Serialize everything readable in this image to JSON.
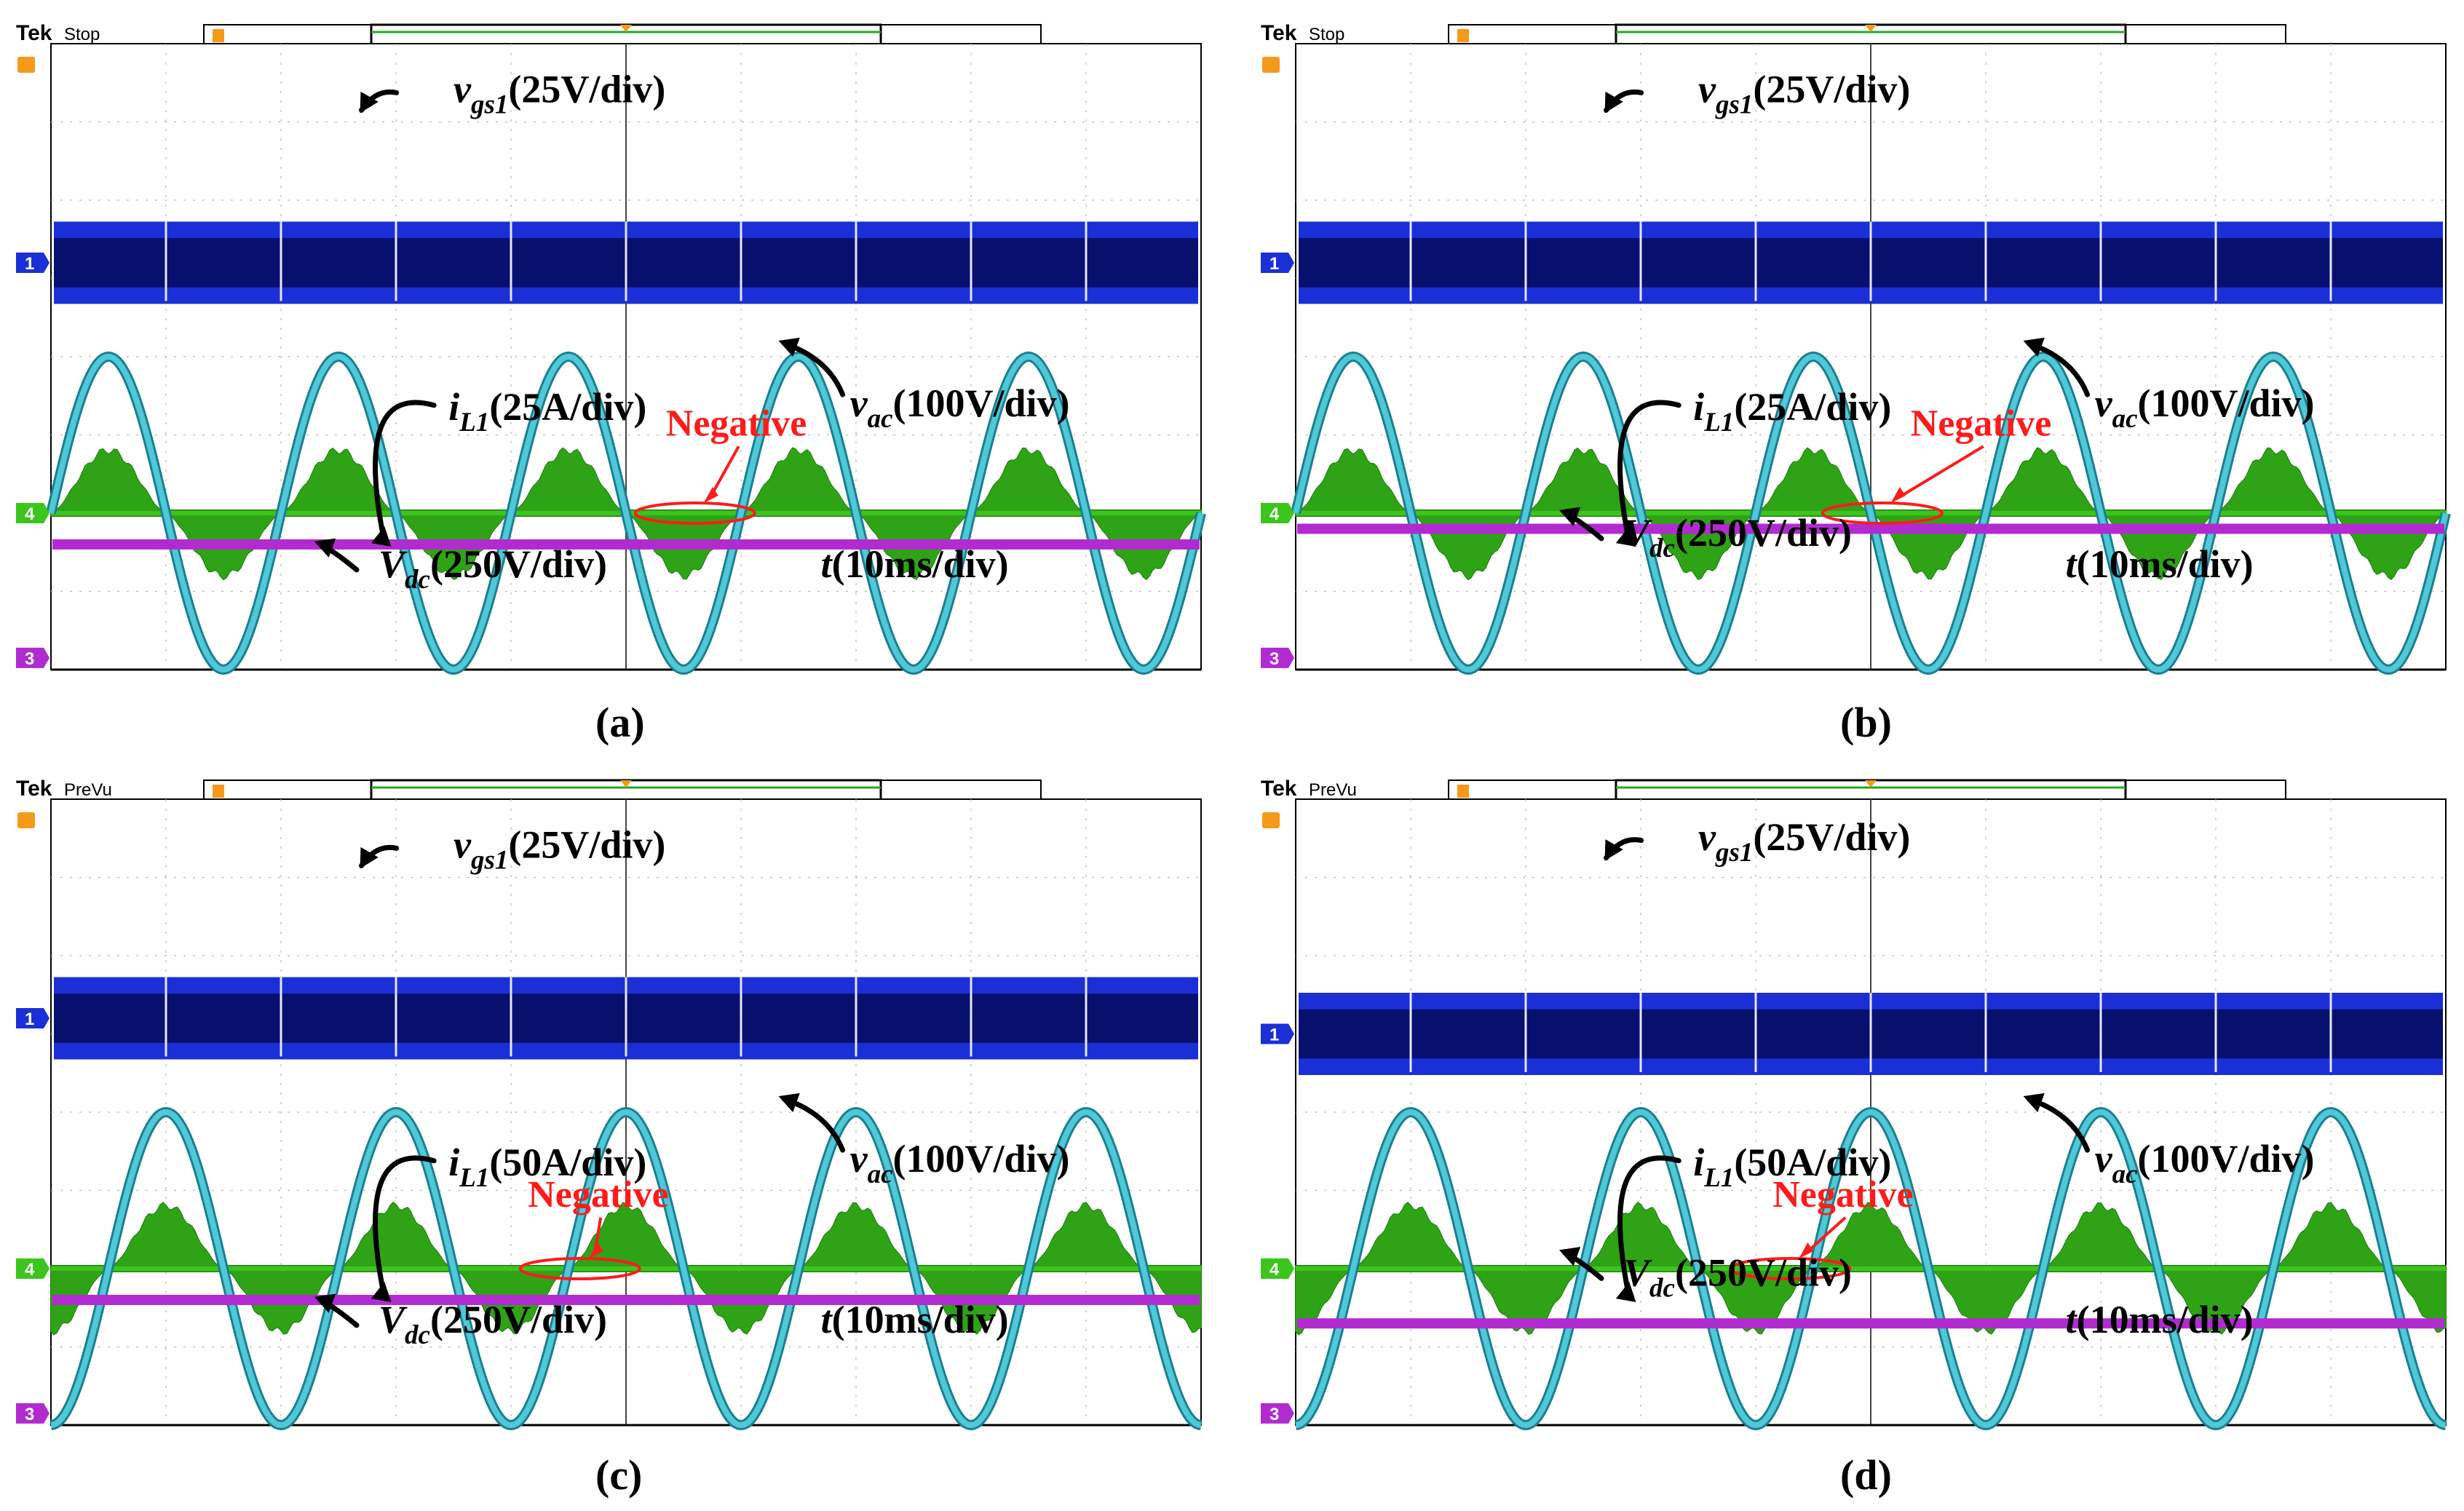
{
  "figure": {
    "panel_count": 4
  },
  "colors": {
    "ch1": "#1b2fd6",
    "ch1_dark": "#08106e",
    "ch2": "#4fc8d8",
    "ch3": "#b12bd0",
    "ch4": "#3cc51d",
    "ch4_dark": "#1f7a0e",
    "trigger": "#f39a1a",
    "annotation": "#ff1b1b",
    "grid": "#b8b8b8"
  },
  "chart_data": [
    {
      "type": "line",
      "panel_id": "(a)",
      "status": "Stop",
      "brand": "Tek",
      "grid": {
        "x_divisions": 10,
        "y_divisions": 8
      },
      "time_label": {
        "var": "t",
        "unit": "(10ms/div)"
      },
      "series": [
        {
          "name": "vgs1",
          "var": "v",
          "sub": "gs1",
          "scale": "(25V/div)",
          "channel": "1",
          "kind": "gate_pulses",
          "center_div": 5.2,
          "pulse_groups": 10
        },
        {
          "name": "vac",
          "var": "v",
          "sub": "ac",
          "scale": "(100V/div)",
          "channel": "2",
          "kind": "sine",
          "amplitude_div": 2.0,
          "period_div": 2.0,
          "phase_div": 0.0
        },
        {
          "name": "iL1",
          "var": "i",
          "sub": "L1",
          "scale": "(25A/div)",
          "channel": "4",
          "kind": "current",
          "amplitude_div": 0.8,
          "period_div": 2.0,
          "phase_div": 0.0,
          "zero_div": 2.0
        },
        {
          "name": "Vdc",
          "var": "V",
          "sub": "dc",
          "scale": "(250V/div)",
          "channel": "3",
          "kind": "dc",
          "level_div": 1.6
        }
      ],
      "annotation": {
        "text": "Negative",
        "ellipse_div": [
          5.6,
          0.0
        ]
      }
    },
    {
      "type": "line",
      "panel_id": "(b)",
      "status": "Stop",
      "brand": "Tek",
      "grid": {
        "x_divisions": 10,
        "y_divisions": 8
      },
      "time_label": {
        "var": "t",
        "unit": "(10ms/div)"
      },
      "series": [
        {
          "name": "vgs1",
          "var": "v",
          "sub": "gs1",
          "scale": "(25V/div)",
          "channel": "1",
          "kind": "gate_pulses",
          "center_div": 5.2,
          "pulse_groups": 10
        },
        {
          "name": "vac",
          "var": "v",
          "sub": "ac",
          "scale": "(100V/div)",
          "channel": "2",
          "kind": "sine",
          "amplitude_div": 2.0,
          "period_div": 2.0,
          "phase_div": 0.0
        },
        {
          "name": "iL1",
          "var": "i",
          "sub": "L1",
          "scale": "(25A/div)",
          "channel": "4",
          "kind": "current",
          "amplitude_div": 0.8,
          "period_div": 2.0,
          "phase_div": 0.0,
          "zero_div": 2.0
        },
        {
          "name": "Vdc",
          "var": "V",
          "sub": "dc",
          "scale": "(250V/div)",
          "channel": "3",
          "kind": "dc",
          "level_div": 1.8
        }
      ],
      "annotation": {
        "text": "Negative",
        "ellipse_div": [
          5.1,
          0.0
        ]
      }
    },
    {
      "type": "line",
      "panel_id": "(c)",
      "status": "PreVu",
      "brand": "Tek",
      "grid": {
        "x_divisions": 10,
        "y_divisions": 8
      },
      "time_label": {
        "var": "t",
        "unit": "(10ms/div)"
      },
      "series": [
        {
          "name": "vgs1",
          "var": "v",
          "sub": "gs1",
          "scale": "(25V/div)",
          "channel": "1",
          "kind": "gate_pulses",
          "center_div": 5.2,
          "pulse_groups": 10
        },
        {
          "name": "vac",
          "var": "v",
          "sub": "ac",
          "scale": "(100V/div)",
          "channel": "2",
          "kind": "sine",
          "amplitude_div": 2.0,
          "period_div": 2.0,
          "phase_div": 0.5
        },
        {
          "name": "iL1",
          "var": "i",
          "sub": "L1",
          "scale": "(50A/div)",
          "channel": "4",
          "kind": "current",
          "amplitude_div": 0.8,
          "period_div": 2.0,
          "phase_div": 0.5,
          "zero_div": 2.0
        },
        {
          "name": "Vdc",
          "var": "V",
          "sub": "dc",
          "scale": "(250V/div)",
          "channel": "3",
          "kind": "dc",
          "level_div": 1.6
        }
      ],
      "annotation": {
        "text": "Negative",
        "ellipse_div": [
          4.6,
          0.0
        ]
      }
    },
    {
      "type": "line",
      "panel_id": "(d)",
      "status": "PreVu",
      "brand": "Tek",
      "grid": {
        "x_divisions": 10,
        "y_divisions": 8
      },
      "time_label": {
        "var": "t",
        "unit": "(10ms/div)"
      },
      "series": [
        {
          "name": "vgs1",
          "var": "v",
          "sub": "gs1",
          "scale": "(25V/div)",
          "channel": "1",
          "kind": "gate_pulses",
          "center_div": 5.0,
          "pulse_groups": 10
        },
        {
          "name": "vac",
          "var": "v",
          "sub": "ac",
          "scale": "(100V/div)",
          "channel": "2",
          "kind": "sine",
          "amplitude_div": 2.0,
          "period_div": 2.0,
          "phase_div": 0.5
        },
        {
          "name": "iL1",
          "var": "i",
          "sub": "L1",
          "scale": "(50A/div)",
          "channel": "4",
          "kind": "current",
          "amplitude_div": 0.8,
          "period_div": 2.0,
          "phase_div": 0.5,
          "zero_div": 2.0
        },
        {
          "name": "Vdc",
          "var": "V",
          "sub": "dc",
          "scale": "(250V/div)",
          "channel": "3",
          "kind": "dc",
          "level_div": 1.3
        }
      ],
      "annotation": {
        "text": "Negative",
        "ellipse_div": [
          4.3,
          0.0
        ]
      }
    }
  ]
}
